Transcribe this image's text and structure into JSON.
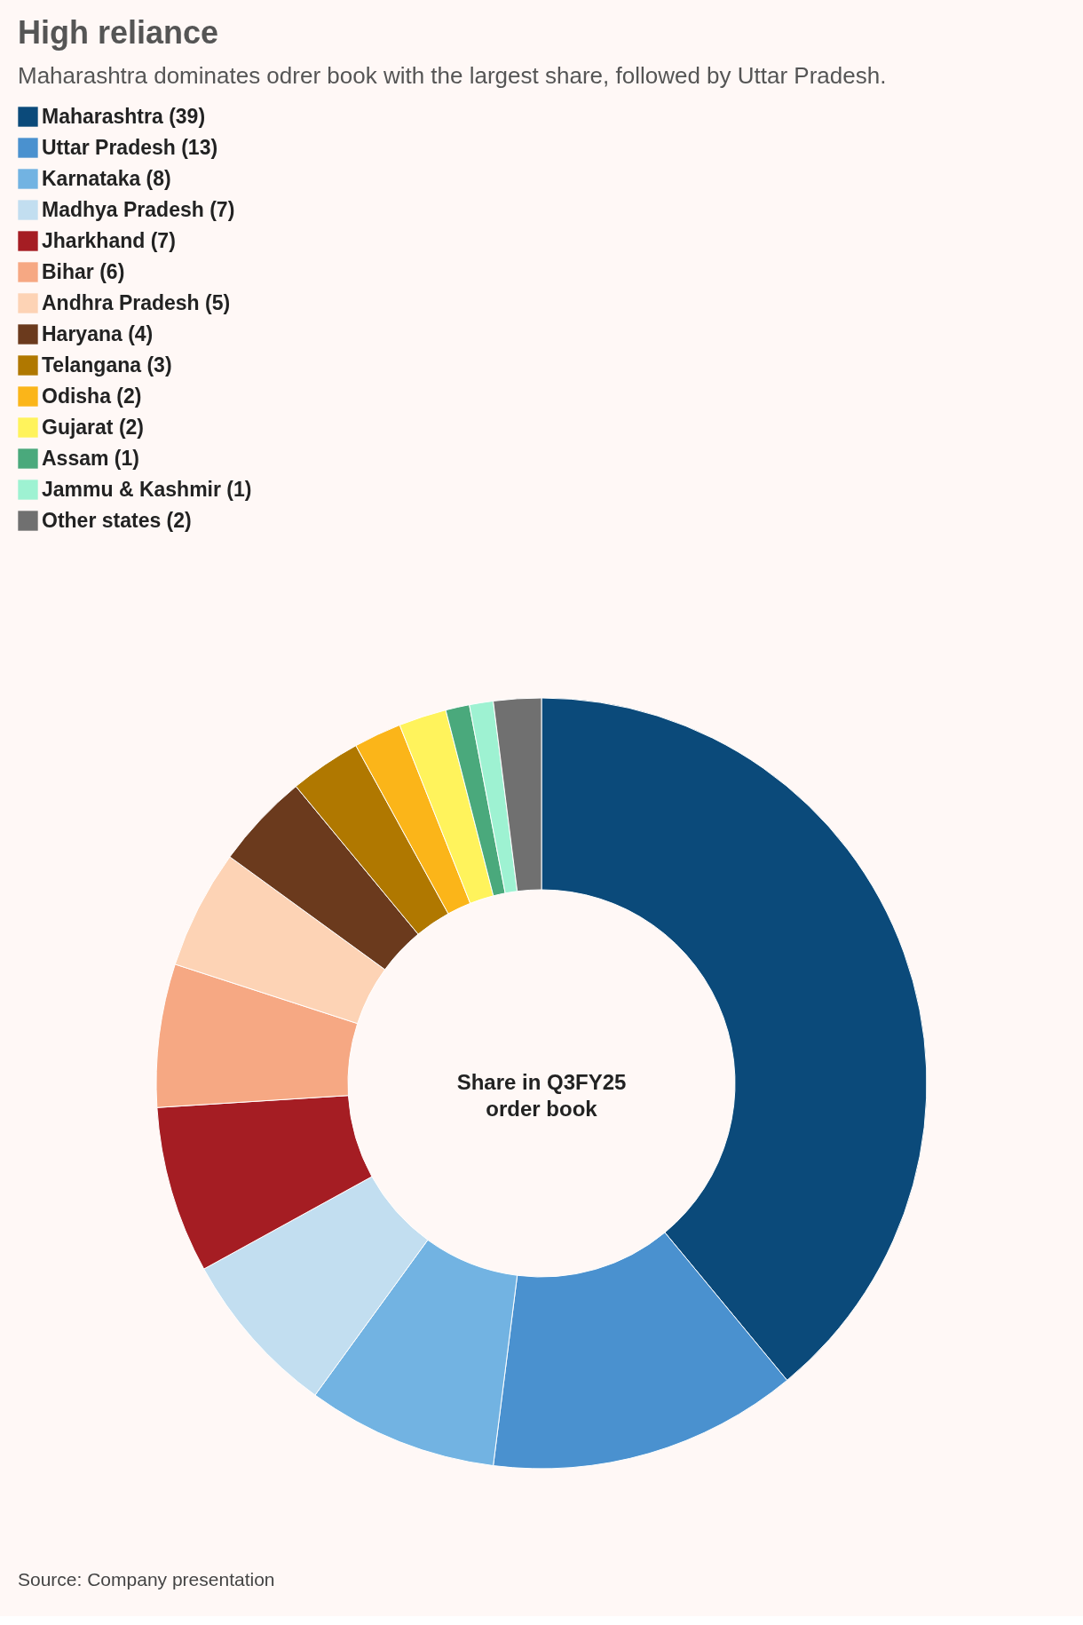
{
  "chart_data": {
    "type": "donut",
    "title": "High reliance",
    "subtitle": "Maharashtra dominates odrer book with the largest share, followed by Uttar Pradesh.",
    "categories": [
      "Maharashtra (39)",
      "Uttar Pradesh (13)",
      "Karnataka (8)",
      "Madhya Pradesh (7)",
      "Jharkhand (7)",
      "Bihar (6)",
      "Andhra Pradesh (5)",
      "Haryana (4)",
      "Telangana (3)",
      "Odisha (2)",
      "Gujarat (2)",
      "Assam (1)",
      "Jammu & Kashmir (1)",
      "Other states (2)"
    ],
    "values": [
      39,
      13,
      8,
      7,
      7,
      6,
      5,
      4,
      3,
      2,
      2,
      1,
      1,
      2
    ],
    "colors": [
      "#0b4a7a",
      "#4a91cf",
      "#72b3e2",
      "#c2def0",
      "#a51d23",
      "#f6a883",
      "#fdd3b5",
      "#6b3a1d",
      "#b07800",
      "#fbb519",
      "#fff35c",
      "#4aa97c",
      "#9ef2d2",
      "#707070"
    ],
    "legend": "top left",
    "annotations": [
      "Share in Q3FY25\norder book",
      "Source: Company presentation"
    ]
  }
}
